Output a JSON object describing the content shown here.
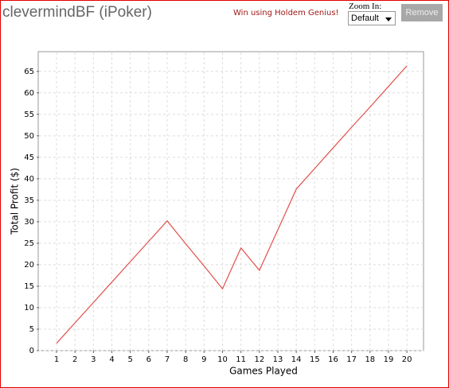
{
  "header": {
    "title": "clevermindBF (iPoker)",
    "promo": "Win using Holdem Genius!",
    "zoom_label": "Zoom In:",
    "zoom_value": "Default",
    "button": "Remove"
  },
  "chart_data": {
    "type": "line",
    "x_label": "Games Played",
    "y_label": "Total Profit ($)",
    "x": [
      1,
      2,
      3,
      4,
      5,
      6,
      7,
      8,
      9,
      10,
      11,
      12,
      13,
      14,
      15,
      16,
      17,
      18,
      19,
      20
    ],
    "series": [
      {
        "color": "#e0504a",
        "values": [
          1.7,
          6.45,
          11.2,
          15.95,
          20.7,
          25.45,
          30.2,
          24.9,
          19.7,
          14.4,
          23.9,
          18.7,
          28.1,
          37.6,
          42.4,
          47.2,
          52.0,
          56.7,
          61.5,
          66.3
        ]
      }
    ],
    "xlim": [
      0.05,
      20.9
    ],
    "ylim": [
      0,
      69.4
    ],
    "xticks": [
      1,
      2,
      3,
      4,
      5,
      6,
      7,
      8,
      9,
      10,
      11,
      12,
      13,
      14,
      15,
      16,
      17,
      18,
      19,
      20
    ],
    "yticks": [
      0,
      5,
      10,
      15,
      20,
      25,
      30,
      35,
      40,
      45,
      50,
      55,
      60,
      65
    ],
    "grid": true
  }
}
